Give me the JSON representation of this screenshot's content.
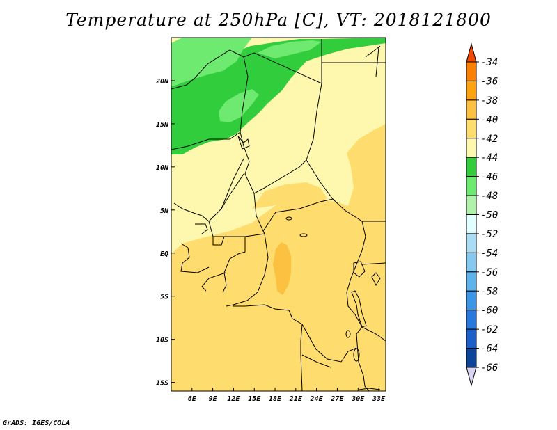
{
  "title": "Temperature at 250hPa [C], VT: 2018121800",
  "credit": "GrADS: IGES/COLA",
  "map": {
    "lon_range": [
      3,
      34
    ],
    "lat_range": [
      -16,
      25
    ],
    "lon_ticks": [
      {
        "value": 6,
        "label": "6E"
      },
      {
        "value": 9,
        "label": "9E"
      },
      {
        "value": 12,
        "label": "12E"
      },
      {
        "value": 15,
        "label": "15E"
      },
      {
        "value": 18,
        "label": "18E"
      },
      {
        "value": 21,
        "label": "21E"
      },
      {
        "value": 24,
        "label": "24E"
      },
      {
        "value": 27,
        "label": "27E"
      },
      {
        "value": 30,
        "label": "30E"
      },
      {
        "value": 33,
        "label": "33E"
      }
    ],
    "lat_ticks": [
      {
        "value": 20,
        "label": "20N"
      },
      {
        "value": 15,
        "label": "15N"
      },
      {
        "value": 10,
        "label": "10N"
      },
      {
        "value": 5,
        "label": "5N"
      },
      {
        "value": 0,
        "label": "EQ"
      },
      {
        "value": -5,
        "label": "5S"
      },
      {
        "value": -10,
        "label": "10S"
      },
      {
        "value": -15,
        "label": "15S"
      }
    ]
  },
  "colorbar": {
    "levels": [
      "-34",
      "-36",
      "-38",
      "-40",
      "-42",
      "-44",
      "-46",
      "-48",
      "-50",
      "-52",
      "-54",
      "-56",
      "-58",
      "-60",
      "-62",
      "-64",
      "-66"
    ],
    "colors": [
      "#f04a06",
      "#fb7f00",
      "#fca30f",
      "#fcc140",
      "#fedc6e",
      "#fdf8ad",
      "#32cd3c",
      "#6eea70",
      "#b0f3a8",
      "#e1ffff",
      "#a9dcf5",
      "#85c8f0",
      "#5eb4ea",
      "#3c96e6",
      "#2879de",
      "#1d5fc8",
      "#0c4498",
      "#0b196b"
    ]
  }
}
